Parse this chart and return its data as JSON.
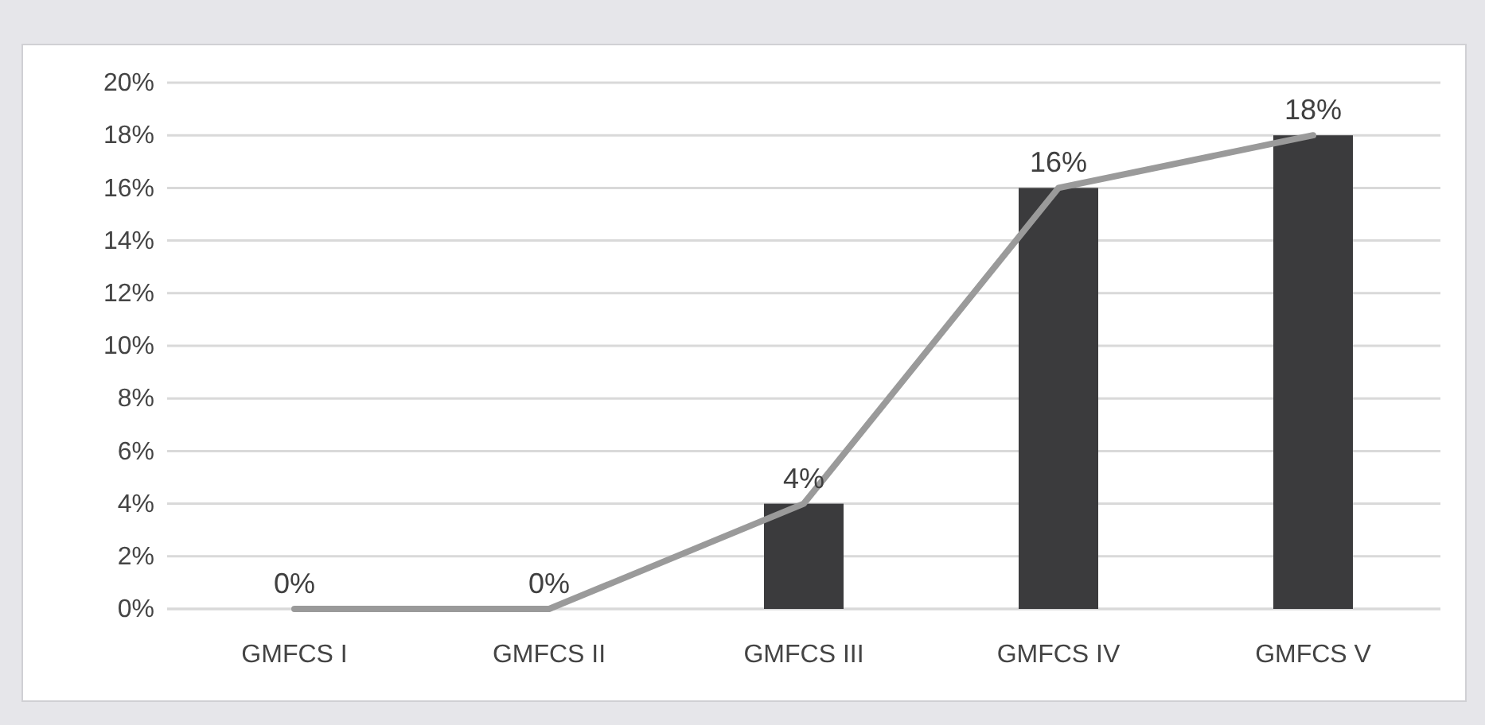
{
  "chart_data": {
    "type": "bar",
    "categories": [
      "GMFCS I",
      "GMFCS II",
      "GMFCS III",
      "GMFCS IV",
      "GMFCS V"
    ],
    "series": [
      {
        "color": "#3b3b3d",
        "values": [
          0,
          0,
          4,
          16,
          18
        ],
        "value_labels": [
          "0%",
          "0%",
          "4%",
          "16%",
          "18%"
        ]
      },
      {
        "type": "line",
        "color": "#9a9a9a",
        "values": [
          0,
          0,
          4,
          16,
          18
        ]
      }
    ],
    "ylim": [
      0,
      20
    ],
    "yticks": [
      {
        "value": 0,
        "label": "0%"
      },
      {
        "value": 2,
        "label": "2%"
      },
      {
        "value": 4,
        "label": "4%"
      },
      {
        "value": 6,
        "label": "6%"
      },
      {
        "value": 8,
        "label": "8%"
      },
      {
        "value": 10,
        "label": "10%"
      },
      {
        "value": 12,
        "label": "12%"
      },
      {
        "value": 14,
        "label": "14%"
      },
      {
        "value": 16,
        "label": "16%"
      },
      {
        "value": 18,
        "label": "18%"
      },
      {
        "value": 20,
        "label": "20%"
      }
    ],
    "grid": "y"
  }
}
